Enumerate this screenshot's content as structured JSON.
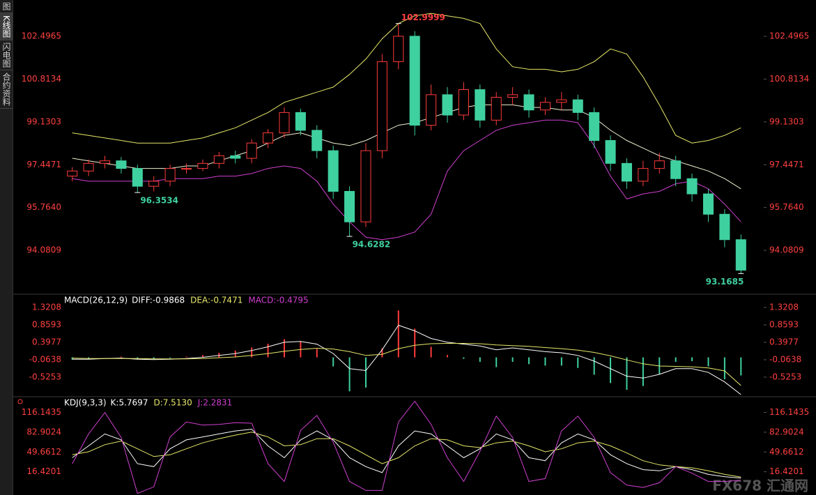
{
  "sidebar": [
    "图",
    "K线图",
    "闪电图",
    "合约资料"
  ],
  "watermark": "FX678 汇通网",
  "chart_data": [
    {
      "type": "candlestick",
      "up_color": "#ff3b3b",
      "down_color": "#3fd0a0",
      "open": [
        97.0,
        97.2,
        97.5,
        97.6,
        97.3,
        96.6,
        96.8,
        97.3,
        97.3,
        97.5,
        97.8,
        97.7,
        98.3,
        98.7,
        99.5,
        98.8,
        98.0,
        96.4,
        95.2,
        98.0,
        101.5,
        102.5,
        99.0,
        100.2,
        99.4,
        100.4,
        99.2,
        100.1,
        100.2,
        99.6,
        99.9,
        100.0,
        99.5,
        98.4,
        97.5,
        96.8,
        97.3,
        97.6,
        96.9,
        96.3,
        95.5,
        94.5
      ],
      "high": [
        97.35,
        97.65,
        97.8,
        97.75,
        97.45,
        97.0,
        97.45,
        97.5,
        97.65,
        97.95,
        98.0,
        98.45,
        98.85,
        99.7,
        99.65,
        99.0,
        98.2,
        96.6,
        98.3,
        101.8,
        102.9999,
        102.7,
        100.6,
        100.5,
        100.7,
        100.6,
        100.3,
        100.5,
        100.4,
        100.1,
        100.3,
        100.2,
        99.7,
        98.6,
        97.7,
        97.6,
        97.9,
        97.8,
        97.1,
        96.5,
        95.7,
        94.7
      ],
      "low": [
        96.8,
        97.0,
        97.3,
        97.1,
        96.3534,
        96.4,
        96.6,
        97.1,
        97.2,
        97.3,
        97.5,
        97.5,
        98.1,
        98.5,
        98.6,
        97.7,
        96.1,
        94.6282,
        95.0,
        97.7,
        101.2,
        98.6,
        98.8,
        99.1,
        99.2,
        98.9,
        99.0,
        99.8,
        99.3,
        99.4,
        99.6,
        99.2,
        98.1,
        97.2,
        96.5,
        96.6,
        97.1,
        96.6,
        96.0,
        95.2,
        94.2,
        93.1685
      ],
      "close": [
        97.2,
        97.5,
        97.6,
        97.3,
        96.6,
        96.8,
        97.3,
        97.3,
        97.5,
        97.8,
        97.7,
        98.3,
        98.7,
        99.5,
        98.8,
        98.0,
        96.4,
        95.2,
        98.0,
        101.5,
        102.5,
        99.0,
        100.2,
        99.4,
        100.4,
        99.2,
        100.1,
        100.2,
        99.6,
        99.9,
        100.0,
        99.5,
        98.4,
        97.5,
        96.8,
        97.3,
        97.6,
        96.9,
        96.3,
        95.5,
        94.5,
        93.3
      ],
      "overlays": [
        {
          "color": "#e8e86a",
          "values": [
            98.7,
            98.6,
            98.5,
            98.4,
            98.3,
            98.3,
            98.3,
            98.4,
            98.5,
            98.7,
            98.9,
            99.2,
            99.5,
            99.9,
            100.1,
            100.3,
            100.5,
            101.0,
            101.6,
            102.4,
            103.0,
            103.3,
            103.4,
            103.3,
            103.2,
            103.0,
            102.0,
            101.3,
            101.2,
            101.2,
            101.1,
            101.2,
            101.5,
            102.0,
            101.8,
            100.9,
            99.8,
            98.6,
            98.3,
            98.4,
            98.6,
            98.9
          ]
        },
        {
          "color": "#f0f0d0",
          "values": [
            97.7,
            97.6,
            97.5,
            97.4,
            97.3,
            97.3,
            97.3,
            97.4,
            97.4,
            97.6,
            97.8,
            98.0,
            98.3,
            98.6,
            98.7,
            98.5,
            98.3,
            98.2,
            98.4,
            98.7,
            99.0,
            99.1,
            99.3,
            99.5,
            99.7,
            99.8,
            99.8,
            99.8,
            99.7,
            99.7,
            99.6,
            99.6,
            99.3,
            98.8,
            98.4,
            98.1,
            97.8,
            97.6,
            97.4,
            97.2,
            96.9,
            96.5
          ]
        },
        {
          "color": "#d040d0",
          "values": [
            96.9,
            96.8,
            96.8,
            96.8,
            96.8,
            96.8,
            96.9,
            96.9,
            96.9,
            97.0,
            97.0,
            97.1,
            97.3,
            97.4,
            97.3,
            96.8,
            95.9,
            95.2,
            94.6,
            94.5,
            94.6,
            94.8,
            95.5,
            97.2,
            98.0,
            98.4,
            98.8,
            99.0,
            99.1,
            99.2,
            99.2,
            99.1,
            98.2,
            97.0,
            96.1,
            96.3,
            96.4,
            96.7,
            96.8,
            96.5,
            95.9,
            95.2
          ]
        }
      ],
      "annotations": [
        {
          "text": "102.9999",
          "candle": 20,
          "side": "high",
          "color": "#ff4040"
        },
        {
          "text": "96.3534",
          "candle": 4,
          "side": "low",
          "color": "#3fd0a0"
        },
        {
          "text": "94.6282",
          "candle": 17,
          "side": "low",
          "color": "#3fd0a0"
        },
        {
          "text": "93.1685",
          "candle": 41,
          "side": "low",
          "color": "#3fd0a0"
        }
      ],
      "ylim": [
        92.41,
        103.65
      ],
      "yticks": [
        102.4965,
        100.8134,
        99.1303,
        97.4471,
        {
          "value": 95.764,
          "label": "95.7640"
        },
        94.0809
      ],
      "tick_color": "#ff4040"
    },
    {
      "type": "macd",
      "title": "MACD(26,12,9)",
      "legend": [
        {
          "text": "DIFF:-0.9868",
          "color": "#ffffff"
        },
        {
          "text": "DEA:-0.7471",
          "color": "#e8e86a"
        },
        {
          "text": "MACD:-0.4795",
          "color": "#d040d0"
        }
      ],
      "series": [
        {
          "color": "#ffffff",
          "values": [
            -0.05,
            -0.05,
            -0.03,
            -0.02,
            -0.05,
            -0.06,
            -0.05,
            -0.03,
            0.0,
            0.05,
            0.1,
            0.18,
            0.28,
            0.4,
            0.42,
            0.35,
            0.1,
            -0.3,
            -0.35,
            0.2,
            0.85,
            0.7,
            0.5,
            0.4,
            0.35,
            0.3,
            0.2,
            0.25,
            0.2,
            0.15,
            0.12,
            0.05,
            -0.1,
            -0.3,
            -0.5,
            -0.55,
            -0.45,
            -0.3,
            -0.3,
            -0.4,
            -0.65,
            -0.9868
          ]
        },
        {
          "color": "#e8e86a",
          "values": [
            -0.02,
            -0.03,
            -0.03,
            -0.03,
            -0.03,
            -0.04,
            -0.04,
            -0.04,
            -0.03,
            -0.01,
            0.01,
            0.05,
            0.1,
            0.16,
            0.21,
            0.24,
            0.22,
            0.15,
            0.05,
            0.08,
            0.23,
            0.32,
            0.36,
            0.37,
            0.37,
            0.36,
            0.33,
            0.31,
            0.29,
            0.26,
            0.23,
            0.19,
            0.13,
            0.04,
            -0.07,
            -0.17,
            -0.23,
            -0.24,
            -0.25,
            -0.28,
            -0.36,
            -0.7471
          ]
        }
      ],
      "histogram": [
        -0.06,
        -0.04,
        0,
        0.02,
        -0.04,
        -0.04,
        -0.02,
        0.02,
        0.06,
        0.12,
        0.18,
        0.26,
        0.36,
        0.48,
        0.42,
        0.22,
        -0.24,
        -0.9,
        -0.8,
        0.24,
        1.24,
        0.76,
        0.28,
        0.06,
        -0.04,
        -0.12,
        -0.26,
        -0.12,
        -0.18,
        -0.22,
        -0.22,
        -0.28,
        -0.46,
        -0.68,
        -0.86,
        -0.76,
        -0.44,
        -0.12,
        -0.1,
        -0.24,
        -0.58,
        -0.4795
      ],
      "up_color": "#ff3b3b",
      "down_color": "#3fd0a0",
      "ylim": [
        -1.0237,
        1.6162
      ],
      "yticks": [
        1.3208,
        0.8593,
        0.3977,
        -0.0638,
        -0.5253
      ],
      "tick_color": "#ff4040"
    },
    {
      "type": "kdj",
      "title": "KDJ(9,3,3)",
      "legend": [
        {
          "text": "K:5.7697",
          "color": "#ffffff"
        },
        {
          "text": "D:7.5130",
          "color": "#e8e86a"
        },
        {
          "text": "J:2.2831",
          "color": "#d040d0"
        }
      ],
      "series": [
        {
          "color": "#ffffff",
          "values": [
            40,
            60,
            80,
            70,
            30,
            25,
            55,
            70,
            75,
            80,
            85,
            88,
            60,
            40,
            70,
            85,
            70,
            40,
            25,
            15,
            60,
            85,
            80,
            60,
            40,
            55,
            80,
            70,
            40,
            35,
            65,
            80,
            70,
            45,
            30,
            20,
            18,
            25,
            20,
            12,
            8,
            5.7697
          ]
        },
        {
          "color": "#e8e86a",
          "values": [
            45,
            50,
            62,
            68,
            55,
            42,
            45,
            55,
            65,
            72,
            78,
            83,
            75,
            60,
            62,
            72,
            72,
            60,
            45,
            30,
            40,
            60,
            72,
            70,
            60,
            57,
            65,
            68,
            60,
            50,
            55,
            65,
            68,
            60,
            48,
            35,
            28,
            25,
            23,
            18,
            12,
            7.513
          ]
        },
        {
          "color": "#d040d0",
          "values": [
            30,
            80,
            116,
            74,
            -20,
            -9,
            75,
            100,
            95,
            96,
            99,
            98,
            30,
            0,
            86,
            111,
            66,
            0,
            -15,
            -15,
            100,
            135,
            96,
            40,
            0,
            51,
            110,
            74,
            0,
            5,
            85,
            110,
            74,
            15,
            -6,
            -10,
            -2,
            25,
            14,
            0,
            0,
            2.2831
          ]
        }
      ],
      "ylim": [
        -16.82,
        139.07
      ],
      "yticks": [
        116.1435,
        82.9024,
        49.6612,
        16.4201
      ],
      "tick_color": "#ff4040"
    }
  ]
}
